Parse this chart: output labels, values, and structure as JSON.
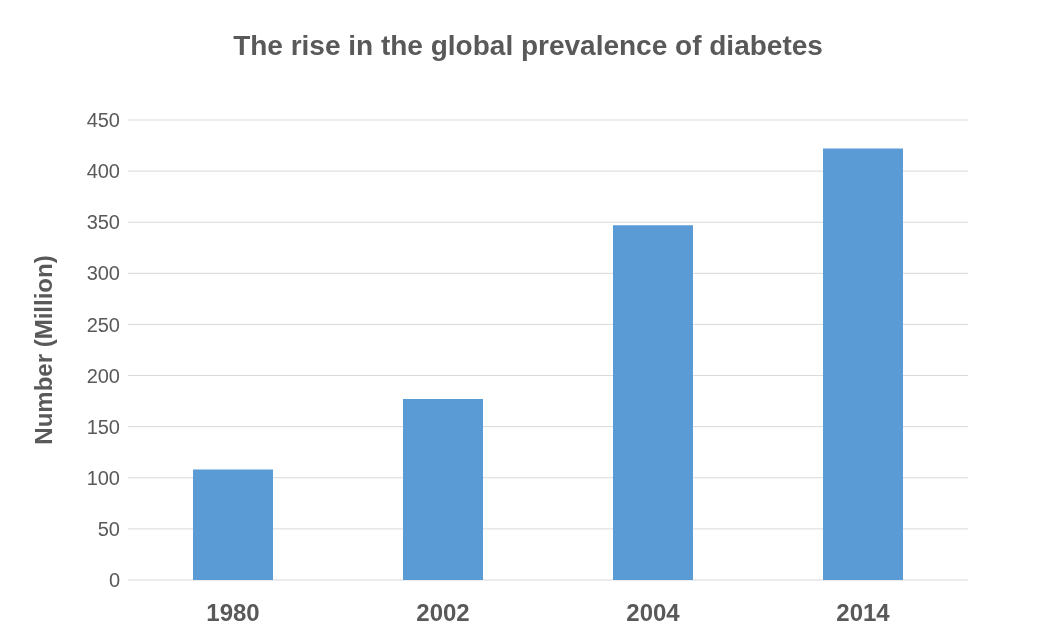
{
  "chart_data": {
    "type": "bar",
    "title": "The rise in the global prevalence of diabetes",
    "ylabel": "Number (Million)",
    "categories": [
      "1980",
      "2002",
      "2004",
      "2014"
    ],
    "values": [
      108,
      177,
      347,
      422
    ],
    "color": "#5b9bd5",
    "ylim": [
      0,
      450
    ],
    "yticks": [
      0,
      50,
      100,
      150,
      200,
      250,
      300,
      350,
      400,
      450
    ],
    "grid": "y"
  }
}
